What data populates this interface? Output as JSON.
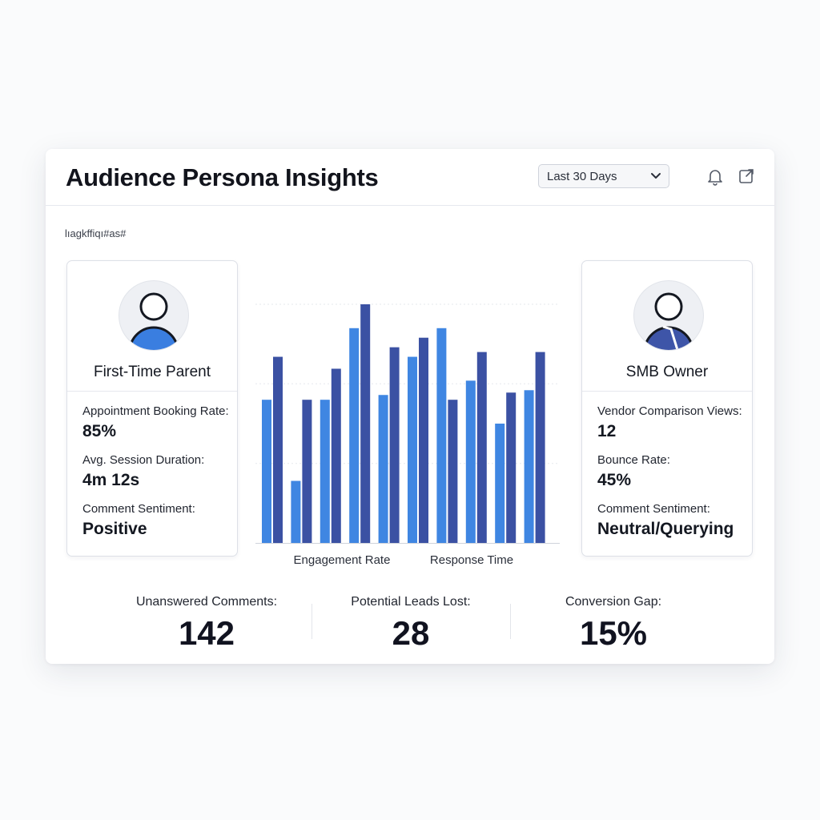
{
  "header": {
    "title": "Audience Persona Insights",
    "date_range": "Last 30 Days",
    "bell_icon": "bell-icon",
    "export_icon": "external-link-icon"
  },
  "subtitle": "lıagkffiqı#as#",
  "personas": [
    {
      "name": "First-Time Parent",
      "avatar_color": "#3a7ee0",
      "metrics": [
        {
          "label": "Appointment Booking Rate:",
          "value": "85%"
        },
        {
          "label": "Avg. Session Duration:",
          "value": "4m 12s"
        },
        {
          "label": "Comment Sentiment:",
          "value": "Positive"
        }
      ]
    },
    {
      "name": "SMB Owner",
      "avatar_color": "#3e55a8",
      "metrics": [
        {
          "label": "Vendor Comparison Views:",
          "value": "12"
        },
        {
          "label": "Bounce Rate:",
          "value": "45%"
        },
        {
          "label": "Comment Sentiment:",
          "value": "Neutral/Querying"
        }
      ]
    }
  ],
  "chart_data": {
    "type": "bar",
    "x_labels": [
      "Engagement Rate",
      "Response Time"
    ],
    "ylim": [
      0,
      100
    ],
    "grid": true,
    "colors": {
      "light": "#3f86e2",
      "dark": "#3b51a3"
    },
    "series": [
      {
        "values": [
          60,
          26,
          60,
          90,
          62,
          78,
          90,
          68,
          50,
          64
        ]
      },
      {
        "values": [
          78,
          60,
          73,
          100,
          82,
          86,
          60,
          80,
          63,
          80
        ]
      }
    ]
  },
  "stats": [
    {
      "label": "Unanswered Comments:",
      "value": "142"
    },
    {
      "label": "Potential Leads Lost:",
      "value": "28"
    },
    {
      "label": "Conversion Gap:",
      "value": "15%"
    }
  ]
}
